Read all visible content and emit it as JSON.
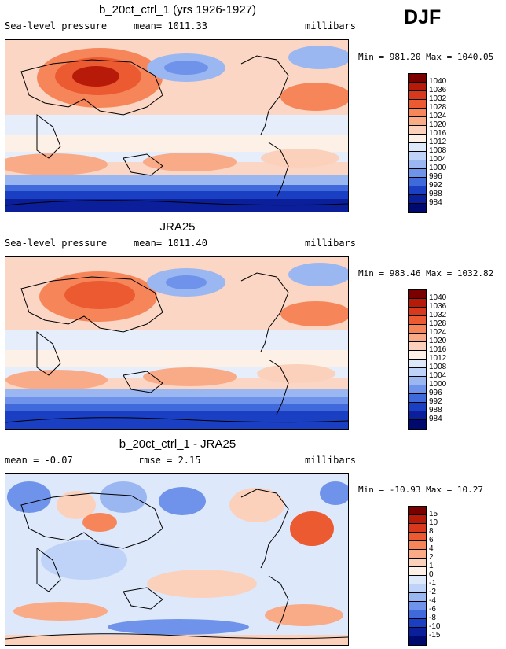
{
  "season": "DJF",
  "panels": [
    {
      "title": "b_20ct_ctrl_1 (yrs 1926-1927)",
      "left_label": "Sea-level pressure",
      "center_label": "mean= 1011.33",
      "right_label": "millibars",
      "minmax": "Min = 981.20 Max = 1040.05",
      "colorbar_labels": [
        "1040",
        "1036",
        "1032",
        "1028",
        "1024",
        "1020",
        "1016",
        "1012",
        "1008",
        "1004",
        "1000",
        "996",
        "992",
        "988",
        "984"
      ]
    },
    {
      "title": "JRA25",
      "left_label": "Sea-level pressure",
      "center_label": "mean= 1011.40",
      "right_label": "millibars",
      "minmax": "Min = 983.46 Max = 1032.82",
      "colorbar_labels": [
        "1040",
        "1036",
        "1032",
        "1028",
        "1024",
        "1020",
        "1016",
        "1012",
        "1008",
        "1004",
        "1000",
        "996",
        "992",
        "988",
        "984"
      ]
    },
    {
      "title": "b_20ct_ctrl_1 - JRA25",
      "left_label": "mean =  -0.07",
      "center_label": "rmse =    2.15",
      "right_label": "millibars",
      "minmax": "Min = -10.93 Max =  10.27",
      "colorbar_labels": [
        "15",
        "10",
        "8",
        "6",
        "4",
        "2",
        "1",
        "0",
        "-1",
        "-2",
        "-4",
        "-6",
        "-8",
        "-10",
        "-15"
      ]
    }
  ],
  "colors": {
    "scale": [
      "#7a0000",
      "#b81a0a",
      "#d8381c",
      "#ec5a32",
      "#f6865a",
      "#f9ab88",
      "#fbd1bc",
      "#fdf0e6",
      "#dde8fb",
      "#bfd2f8",
      "#9ab7f2",
      "#6f93ea",
      "#4069db",
      "#1a3fc2",
      "#0a1f99",
      "#000a6e"
    ]
  }
}
